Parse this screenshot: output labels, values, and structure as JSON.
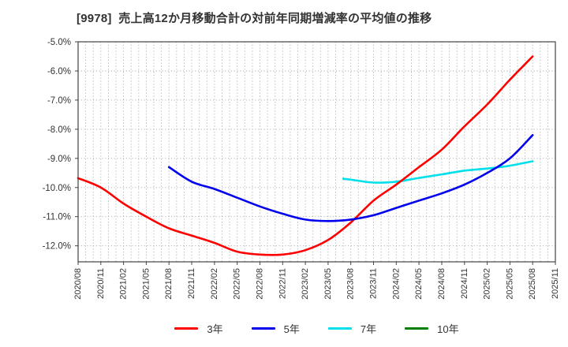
{
  "chart_data": {
    "type": "line",
    "title": "[9978]  売上高12か月移動合計の対前年同期増減率の平均値の推移",
    "xlabel": "",
    "ylabel": "",
    "x_domain": [
      "2020/08",
      "2025/11"
    ],
    "x_tick_labels": [
      "2020/08",
      "2020/11",
      "2021/02",
      "2021/05",
      "2021/08",
      "2021/11",
      "2022/02",
      "2022/05",
      "2022/08",
      "2022/11",
      "2023/02",
      "2023/05",
      "2023/08",
      "2023/11",
      "2024/02",
      "2024/05",
      "2024/08",
      "2024/11",
      "2025/02",
      "2025/05",
      "2025/08",
      "2025/11"
    ],
    "y_tick_labels": [
      "-5.0%",
      "-6.0%",
      "-7.0%",
      "-8.0%",
      "-9.0%",
      "-10.0%",
      "-11.0%",
      "-12.0%"
    ],
    "y_ticks": [
      -5,
      -6,
      -7,
      -8,
      -9,
      -10,
      -11,
      -12
    ],
    "ylim": [
      -12.55,
      -5.0
    ],
    "grid": true,
    "grid_style": "dotted",
    "legend_position": "bottom",
    "colors": {
      "grid": "#aaaaaa",
      "frame": "#444444",
      "text": "#333333"
    },
    "series": [
      {
        "name": "3年",
        "color": "#ff0000",
        "z": 2,
        "points": [
          [
            "2020/08",
            -9.68
          ],
          [
            "2020/11",
            -10.0
          ],
          [
            "2021/02",
            -10.55
          ],
          [
            "2021/05",
            -11.0
          ],
          [
            "2021/08",
            -11.4
          ],
          [
            "2021/11",
            -11.65
          ],
          [
            "2022/02",
            -11.9
          ],
          [
            "2022/05",
            -12.2
          ],
          [
            "2022/08",
            -12.3
          ],
          [
            "2022/11",
            -12.3
          ],
          [
            "2023/02",
            -12.15
          ],
          [
            "2023/05",
            -11.8
          ],
          [
            "2023/08",
            -11.2
          ],
          [
            "2023/11",
            -10.45
          ],
          [
            "2024/02",
            -9.9
          ],
          [
            "2024/05",
            -9.3
          ],
          [
            "2024/08",
            -8.7
          ],
          [
            "2024/11",
            -7.9
          ],
          [
            "2025/02",
            -7.15
          ],
          [
            "2025/05",
            -6.3
          ],
          [
            "2025/08",
            -5.5
          ]
        ]
      },
      {
        "name": "5年",
        "color": "#0000ee",
        "z": 3,
        "points": [
          [
            "2021/08",
            -9.3
          ],
          [
            "2021/11",
            -9.8
          ],
          [
            "2022/02",
            -10.05
          ],
          [
            "2022/05",
            -10.35
          ],
          [
            "2022/08",
            -10.65
          ],
          [
            "2022/11",
            -10.9
          ],
          [
            "2023/02",
            -11.1
          ],
          [
            "2023/05",
            -11.15
          ],
          [
            "2023/08",
            -11.1
          ],
          [
            "2023/11",
            -10.95
          ],
          [
            "2024/02",
            -10.7
          ],
          [
            "2024/05",
            -10.45
          ],
          [
            "2024/08",
            -10.2
          ],
          [
            "2024/11",
            -9.9
          ],
          [
            "2025/02",
            -9.5
          ],
          [
            "2025/05",
            -9.0
          ],
          [
            "2025/08",
            -8.2
          ]
        ]
      },
      {
        "name": "7年",
        "color": "#00e0ea",
        "z": 1,
        "points": [
          [
            "2023/07",
            -9.7
          ],
          [
            "2023/08",
            -9.73
          ],
          [
            "2023/11",
            -9.83
          ],
          [
            "2024/02",
            -9.8
          ],
          [
            "2024/05",
            -9.67
          ],
          [
            "2024/08",
            -9.55
          ],
          [
            "2024/11",
            -9.42
          ],
          [
            "2025/02",
            -9.35
          ],
          [
            "2025/05",
            -9.25
          ],
          [
            "2025/08",
            -9.1
          ]
        ]
      },
      {
        "name": "10年",
        "color": "#008000",
        "z": 0,
        "points": []
      }
    ]
  }
}
